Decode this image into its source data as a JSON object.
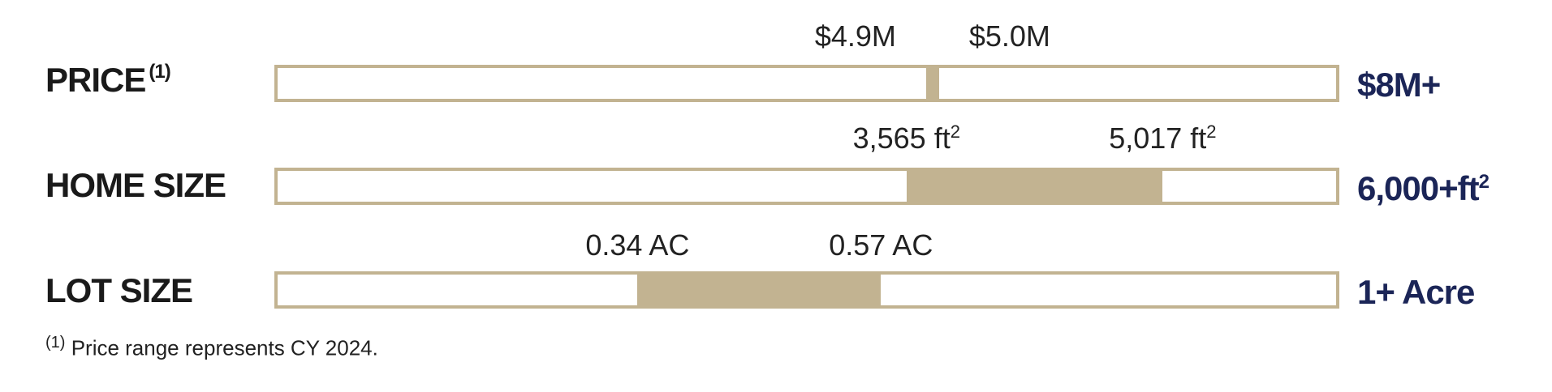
{
  "chart_data": {
    "type": "range-bar",
    "unit_note": "",
    "rows": [
      {
        "key": "price",
        "label": "PRICE",
        "label_sup": "(1)",
        "low_label": "$4.9M",
        "high_label": "$5.0M",
        "low_label_sup": "",
        "high_label_sup": "",
        "end_label": "$8M+",
        "end_label_sup": "",
        "scale_max": 8.0,
        "low": 4.9,
        "high": 5.0
      },
      {
        "key": "home_size",
        "label": "HOME SIZE",
        "label_sup": "",
        "low_label": "3,565 ft",
        "high_label": "5,017 ft",
        "low_label_sup": "2",
        "high_label_sup": "2",
        "end_label": "6,000+ft",
        "end_label_sup": "2",
        "scale_max": 6000,
        "low": 3565,
        "high": 5017
      },
      {
        "key": "lot_size",
        "label": "LOT SIZE",
        "label_sup": "",
        "low_label": "0.34 AC",
        "high_label": "0.57 AC",
        "low_label_sup": "",
        "high_label_sup": "",
        "end_label": "1+ Acre",
        "end_label_sup": "",
        "scale_max": 1.0,
        "low": 0.34,
        "high": 0.57
      }
    ]
  },
  "footnote": {
    "marker": "(1)",
    "text": "Price range represents CY 2024."
  },
  "colors": {
    "bar": "#c2b391",
    "end_label": "#1b2557",
    "text": "#222222"
  }
}
